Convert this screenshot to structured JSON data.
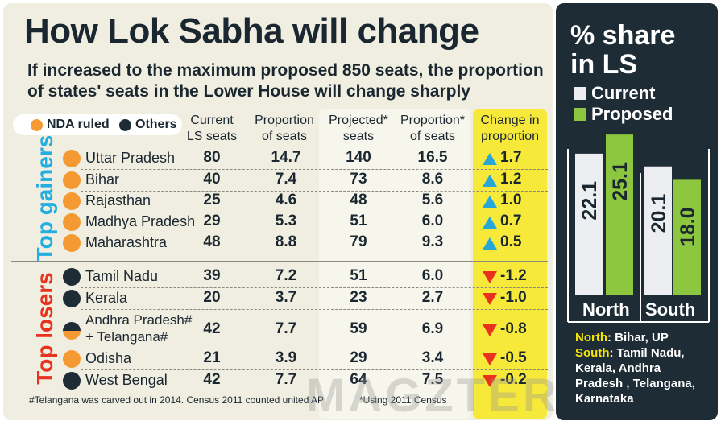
{
  "title": "How Lok Sabha will change",
  "subtitle": {
    "line1": "If increased to the maximum proposed 850 seats, the proportion",
    "line2": "of states' seats in the Lower House will change sharply"
  },
  "legend": {
    "nda": "NDA ruled",
    "others": "Others"
  },
  "headers": {
    "current": [
      "Current",
      "LS seats"
    ],
    "proportion": [
      "Proportion",
      "of seats"
    ],
    "projected": [
      "Projected*",
      "seats"
    ],
    "proportion2": [
      "Proportion*",
      "of seats"
    ],
    "change": [
      "Change in",
      "proportion"
    ]
  },
  "groups": {
    "gainers": "Top gainers",
    "losers": "Top losers"
  },
  "colors": {
    "nda": "#f59a32",
    "others": "#1e2c36",
    "up": "#27a7d8",
    "down": "#e8321e",
    "current": "#eceef2",
    "proposed": "#8dc63f",
    "highlight": "#f6e93a"
  },
  "rows": [
    {
      "state": "Uttar Pradesh",
      "party": "nda",
      "current": "80",
      "prop": "14.7",
      "projected": "140",
      "prop2": "16.5",
      "dir": "up",
      "change": "1.7"
    },
    {
      "state": "Bihar",
      "party": "nda",
      "current": "40",
      "prop": "7.4",
      "projected": "73",
      "prop2": "8.6",
      "dir": "up",
      "change": "1.2"
    },
    {
      "state": "Rajasthan",
      "party": "nda",
      "current": "25",
      "prop": "4.6",
      "projected": "48",
      "prop2": "5.6",
      "dir": "up",
      "change": "1.0"
    },
    {
      "state": "Madhya Pradesh",
      "party": "nda",
      "current": "29",
      "prop": "5.3",
      "projected": "51",
      "prop2": "6.0",
      "dir": "up",
      "change": "0.7"
    },
    {
      "state": "Maharashtra",
      "party": "nda",
      "current": "48",
      "prop": "8.8",
      "projected": "79",
      "prop2": "9.3",
      "dir": "up",
      "change": "0.5"
    },
    {
      "state": "Tamil Nadu",
      "party": "others",
      "current": "39",
      "prop": "7.2",
      "projected": "51",
      "prop2": "6.0",
      "dir": "down",
      "change": "-1.2"
    },
    {
      "state": "Kerala",
      "party": "others",
      "current": "20",
      "prop": "3.7",
      "projected": "23",
      "prop2": "2.7",
      "dir": "down",
      "change": "-1.0"
    },
    {
      "state": "Andhra Pradesh#",
      "state2": "+ Telangana#",
      "party": "split",
      "current": "42",
      "prop": "7.7",
      "projected": "59",
      "prop2": "6.9",
      "dir": "down",
      "change": "-0.8"
    },
    {
      "state": "Odisha",
      "party": "nda",
      "current": "21",
      "prop": "3.9",
      "projected": "29",
      "prop2": "3.4",
      "dir": "down",
      "change": "-0.5"
    },
    {
      "state": "West Bengal",
      "party": "others",
      "current": "42",
      "prop": "7.7",
      "projected": "64",
      "prop2": "7.5",
      "dir": "down",
      "change": "-0.2"
    }
  ],
  "footnotes": {
    "telangana": "#Telangana was carved out in 2014. Census 2011 counted united AP",
    "census": "*Using 2011 Census"
  },
  "chart_data": {
    "type": "bar",
    "title": "% share in LS",
    "categories": [
      "North",
      "South"
    ],
    "series": [
      {
        "name": "Current",
        "values": [
          22.1,
          20.1
        ]
      },
      {
        "name": "Proposed",
        "values": [
          25.1,
          18.0
        ]
      }
    ],
    "value_labels": [
      [
        "22.1",
        "20.1"
      ],
      [
        "25.1",
        "18.0"
      ]
    ],
    "ylim": [
      0,
      26
    ]
  },
  "notes": {
    "north_key": "North",
    "north_val": ": Bihar, UP",
    "south_key": "South",
    "south_lines": [
      ": Tamil Nadu,",
      "Kerala, Andhra",
      "Pradesh , Telangana,",
      "Karnataka"
    ]
  },
  "watermark": "MAGZTER"
}
